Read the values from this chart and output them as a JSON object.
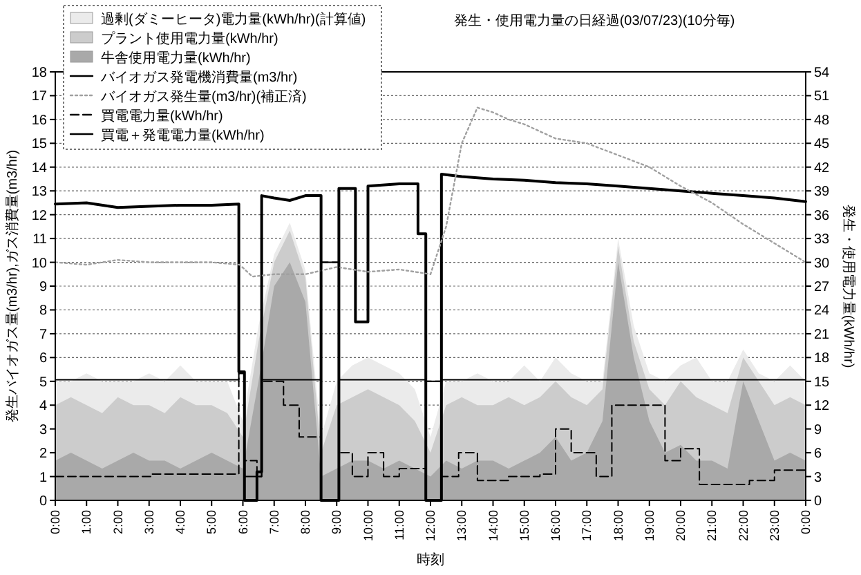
{
  "chart_data": {
    "type": "area",
    "title": "発生・使用電力量の日経過(03/07/23)(10分毎)",
    "xlabel": "時刻",
    "ylabel": "発生バイオガス量(m3/hr),ガス消費量(m3/hr)",
    "y2label": "発生・使用電力量(kWh/hr)",
    "xlim": [
      0,
      24
    ],
    "xticks": [
      {
        "value": 0,
        "label": "0:00"
      },
      {
        "value": 1,
        "label": "1:00"
      },
      {
        "value": 2,
        "label": "2:00"
      },
      {
        "value": 3,
        "label": "3:00"
      },
      {
        "value": 4,
        "label": "4:00"
      },
      {
        "value": 5,
        "label": "5:00"
      },
      {
        "value": 6,
        "label": "6:00"
      },
      {
        "value": 7,
        "label": "7:00"
      },
      {
        "value": 8,
        "label": "8:00"
      },
      {
        "value": 9,
        "label": "9:00"
      },
      {
        "value": 10,
        "label": "10:00"
      },
      {
        "value": 11,
        "label": "11:00"
      },
      {
        "value": 12,
        "label": "12:00"
      },
      {
        "value": 13,
        "label": "13:00"
      },
      {
        "value": 14,
        "label": "14:00"
      },
      {
        "value": 15,
        "label": "15:00"
      },
      {
        "value": 16,
        "label": "16:00"
      },
      {
        "value": 17,
        "label": "17:00"
      },
      {
        "value": 18,
        "label": "18:00"
      },
      {
        "value": 19,
        "label": "19:00"
      },
      {
        "value": 20,
        "label": "20:00"
      },
      {
        "value": 21,
        "label": "21:00"
      },
      {
        "value": 22,
        "label": "22:00"
      },
      {
        "value": 23,
        "label": "23:00"
      },
      {
        "value": 24,
        "label": "0:00"
      }
    ],
    "ylim": [
      0,
      18
    ],
    "yticks": [
      0,
      1,
      2,
      3,
      4,
      5,
      6,
      7,
      8,
      9,
      10,
      11,
      12,
      13,
      14,
      15,
      16,
      17,
      18
    ],
    "y2lim": [
      0,
      54
    ],
    "y2ticks": [
      0,
      3,
      6,
      9,
      12,
      15,
      18,
      21,
      24,
      27,
      30,
      33,
      36,
      39,
      42,
      45,
      48,
      51,
      54
    ],
    "grid": "y",
    "legend": "top left",
    "x": [
      0,
      0.5,
      1,
      1.5,
      2,
      2.5,
      3,
      3.5,
      4,
      4.5,
      5,
      5.5,
      6,
      6.5,
      7,
      7.5,
      8,
      8.5,
      9,
      9.5,
      10,
      10.5,
      11,
      11.5,
      12,
      12.5,
      13,
      13.5,
      14,
      14.5,
      15,
      15.5,
      16,
      16.5,
      17,
      17.5,
      18,
      18.5,
      19,
      19.5,
      20,
      20.5,
      21,
      21.5,
      22,
      22.5,
      23,
      23.5,
      24
    ],
    "series": [
      {
        "name": "過剰(ダミーヒータ)電力量(kWh/hr)(計算値)",
        "axis": "y2",
        "color": "#ebebeb",
        "values": [
          15,
          15,
          16,
          15,
          15,
          15,
          16,
          15,
          17,
          15,
          15,
          15,
          10,
          22,
          31,
          35,
          29,
          8,
          15,
          17,
          18,
          17,
          16,
          14,
          8,
          15,
          15,
          16,
          15,
          15,
          17,
          15,
          18,
          16,
          15,
          15,
          33,
          22,
          16,
          15,
          17,
          18,
          15,
          15,
          19,
          16,
          15,
          17,
          15
        ]
      },
      {
        "name": "プラント使用電力量(kWh/hr)",
        "axis": "y2",
        "color": "#cccccc",
        "values": [
          12,
          13,
          12,
          11,
          13,
          12,
          12,
          11,
          13,
          12,
          12,
          11,
          8,
          20,
          30,
          34,
          28,
          6,
          12,
          13,
          14,
          13,
          12,
          10,
          6,
          12,
          13,
          12,
          12,
          13,
          12,
          13,
          15,
          13,
          12,
          14,
          32,
          20,
          14,
          12,
          15,
          13,
          12,
          11,
          18,
          15,
          12,
          13,
          12
        ]
      },
      {
        "name": "牛舎使用電力量(kWh/hr)",
        "axis": "y2",
        "color": "#a9a9a9",
        "values": [
          5,
          6,
          5,
          4,
          5,
          6,
          5,
          5,
          4,
          5,
          6,
          5,
          4,
          15,
          27,
          30,
          25,
          3,
          4,
          5,
          5,
          4,
          5,
          4,
          3,
          5,
          4,
          5,
          5,
          4,
          5,
          6,
          8,
          5,
          6,
          10,
          30,
          18,
          10,
          6,
          7,
          5,
          5,
          4,
          15,
          10,
          5,
          6,
          5
        ]
      },
      {
        "name": "バイオガス発電機消費量(m3/hr)",
        "type": "line",
        "color": "#000000",
        "line_style": "solid",
        "x": [
          0,
          1,
          2,
          3,
          4,
          5,
          5.87,
          5.87,
          6.05,
          6.05,
          6.45,
          6.45,
          6.6,
          6.6,
          7,
          7.5,
          8,
          8.5,
          8.5,
          9.07,
          9.07,
          9.6,
          9.6,
          10,
          10,
          11,
          11.6,
          11.6,
          11.85,
          11.85,
          12.35,
          12.35,
          13,
          14,
          15,
          16,
          17,
          18,
          19,
          20,
          21,
          22,
          23,
          24
        ],
        "values": [
          12.45,
          12.5,
          12.3,
          12.35,
          12.4,
          12.4,
          12.45,
          5.4,
          5.4,
          0,
          0,
          1.2,
          1.2,
          12.8,
          12.7,
          12.6,
          12.8,
          12.8,
          0,
          0,
          13.1,
          13.1,
          7.5,
          7.5,
          13.2,
          13.3,
          13.3,
          11.2,
          11.2,
          0,
          0,
          13.7,
          13.6,
          13.5,
          13.45,
          13.35,
          13.3,
          13.2,
          13.1,
          13,
          12.9,
          12.8,
          12.7,
          12.55
        ]
      },
      {
        "name": "バイオガス発生量(m3/hr)(補正済)",
        "type": "line",
        "color": "#a0a0a0",
        "line_style": "dotted",
        "x": [
          0,
          1,
          2,
          3,
          4,
          5,
          5.9,
          6.3,
          7,
          8,
          9,
          10,
          11,
          12,
          12.5,
          13,
          13.5,
          14,
          14.5,
          15,
          16,
          17,
          18,
          19,
          19.5,
          20,
          21,
          22,
          23,
          24
        ],
        "values": [
          10,
          9.9,
          10.1,
          10,
          10,
          10,
          9.9,
          9.4,
          9.5,
          9.5,
          9.8,
          9.6,
          9.7,
          9.5,
          11.5,
          15,
          16.5,
          16.3,
          16,
          15.8,
          15.2,
          15,
          14.5,
          14,
          13.6,
          13.2,
          12.5,
          11.6,
          10.8,
          10
        ]
      },
      {
        "name": "買電電力量(kWh/hr)",
        "type": "step",
        "axis": "y2",
        "color": "#000000",
        "line_style": "dashed",
        "x": [
          0,
          3.1,
          5.87,
          6.05,
          6.45,
          6.6,
          7.3,
          7.8,
          8.5,
          9.07,
          9.5,
          10,
          10.5,
          11,
          11.85,
          12.35,
          12.9,
          13.5,
          14.5,
          15.5,
          16,
          16.5,
          17.3,
          17.8,
          19.5,
          20,
          20.6,
          22.2,
          23,
          24
        ],
        "values": [
          3,
          3.3,
          16,
          5,
          3,
          15,
          12,
          8,
          30,
          6,
          3,
          6,
          3,
          4,
          15,
          3,
          6,
          2.5,
          3,
          3.3,
          9,
          6,
          3,
          12,
          5,
          6.5,
          2,
          2.5,
          3.8,
          3.8
        ]
      },
      {
        "name": "買電＋発電電力量(kWh/hr)",
        "type": "step",
        "axis": "y2",
        "color": "#000000",
        "line_style": "solid",
        "x": [
          0,
          5.87,
          6.05,
          6.6,
          8.5,
          9.07,
          11.85,
          12.35,
          24
        ],
        "values": [
          15.2,
          16,
          3,
          15.2,
          30,
          15.2,
          15,
          15.2,
          15.2
        ]
      }
    ]
  }
}
